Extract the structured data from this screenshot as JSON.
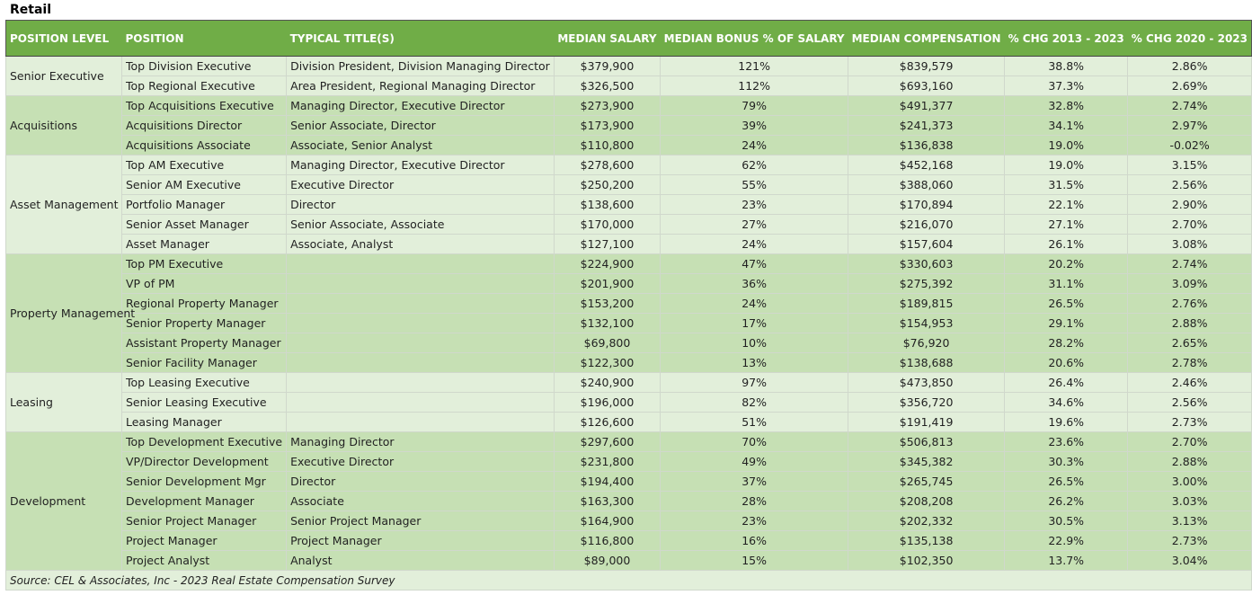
{
  "title": "Retail",
  "headers": [
    "POSITION LEVEL",
    "POSITION",
    "TYPICAL TITLE(S)",
    "MEDIAN SALARY",
    "MEDIAN BONUS % OF SALARY",
    "MEDIAN COMPENSATION",
    "% CHG 2013 - 2023",
    "% CHG 2020 - 2023"
  ],
  "groups": [
    {
      "level": "Senior Executive",
      "rows": [
        [
          "Top Division Executive",
          "Division President, Division Managing Director",
          "$379,900",
          "121%",
          "$839,579",
          "38.8%",
          "2.86%"
        ],
        [
          "Top Regional Executive",
          "Area President, Regional Managing Director",
          "$326,500",
          "112%",
          "$693,160",
          "37.3%",
          "2.69%"
        ]
      ]
    },
    {
      "level": "Acquisitions",
      "rows": [
        [
          "Top Acquisitions Executive",
          "Managing Director, Executive Director",
          "$273,900",
          "79%",
          "$491,377",
          "32.8%",
          "2.74%"
        ],
        [
          "Acquisitions Director",
          "Senior Associate, Director",
          "$173,900",
          "39%",
          "$241,373",
          "34.1%",
          "2.97%"
        ],
        [
          "Acquisitions Associate",
          "Associate, Senior Analyst",
          "$110,800",
          "24%",
          "$136,838",
          "19.0%",
          "-0.02%"
        ]
      ]
    },
    {
      "level": "Asset Management",
      "rows": [
        [
          "Top AM Executive",
          "Managing Director, Executive Director",
          "$278,600",
          "62%",
          "$452,168",
          "19.0%",
          "3.15%"
        ],
        [
          "Senior AM Executive",
          "Executive Director",
          "$250,200",
          "55%",
          "$388,060",
          "31.5%",
          "2.56%"
        ],
        [
          "Portfolio Manager",
          "Director",
          "$138,600",
          "23%",
          "$170,894",
          "22.1%",
          "2.90%"
        ],
        [
          "Senior Asset Manager",
          "Senior Associate, Associate",
          "$170,000",
          "27%",
          "$216,070",
          "27.1%",
          "2.70%"
        ],
        [
          "Asset Manager",
          "Associate, Analyst",
          "$127,100",
          "24%",
          "$157,604",
          "26.1%",
          "3.08%"
        ]
      ]
    },
    {
      "level": "Property Management",
      "rows": [
        [
          "Top PM Executive",
          "",
          "$224,900",
          "47%",
          "$330,603",
          "20.2%",
          "2.74%"
        ],
        [
          "VP of PM",
          "",
          "$201,900",
          "36%",
          "$275,392",
          "31.1%",
          "3.09%"
        ],
        [
          "Regional Property Manager",
          "",
          "$153,200",
          "24%",
          "$189,815",
          "26.5%",
          "2.76%"
        ],
        [
          "Senior Property Manager",
          "",
          "$132,100",
          "17%",
          "$154,953",
          "29.1%",
          "2.88%"
        ],
        [
          "Assistant Property Manager",
          "",
          "$69,800",
          "10%",
          "$76,920",
          "28.2%",
          "2.65%"
        ],
        [
          "Senior Facility Manager",
          "",
          "$122,300",
          "13%",
          "$138,688",
          "20.6%",
          "2.78%"
        ]
      ]
    },
    {
      "level": "Leasing",
      "rows": [
        [
          "Top Leasing Executive",
          "",
          "$240,900",
          "97%",
          "$473,850",
          "26.4%",
          "2.46%"
        ],
        [
          "Senior Leasing Executive",
          "",
          "$196,000",
          "82%",
          "$356,720",
          "34.6%",
          "2.56%"
        ],
        [
          "Leasing Manager",
          "",
          "$126,600",
          "51%",
          "$191,419",
          "19.6%",
          "2.73%"
        ]
      ]
    },
    {
      "level": "Development",
      "rows": [
        [
          "Top Development Executive",
          "Managing Director",
          "$297,600",
          "70%",
          "$506,813",
          "23.6%",
          "2.70%"
        ],
        [
          "VP/Director Development",
          "Executive Director",
          "$231,800",
          "49%",
          "$345,382",
          "30.3%",
          "2.88%"
        ],
        [
          "Senior Development Mgr",
          "Director",
          "$194,400",
          "37%",
          "$265,745",
          "26.5%",
          "3.00%"
        ],
        [
          "Development Manager",
          "Associate",
          "$163,300",
          "28%",
          "$208,208",
          "26.2%",
          "3.03%"
        ],
        [
          "Senior Project Manager",
          "Senior Project Manager",
          "$164,900",
          "23%",
          "$202,332",
          "30.5%",
          "3.13%"
        ],
        [
          "Project Manager",
          "Project Manager",
          "$116,800",
          "16%",
          "$135,138",
          "22.9%",
          "2.73%"
        ],
        [
          "Project Analyst",
          "Analyst",
          "$89,000",
          "15%",
          "$102,350",
          "13.7%",
          "3.04%"
        ]
      ]
    }
  ],
  "source": "Source: CEL & Associates, Inc - 2023 Real Estate Compensation Survey",
  "colors": {
    "header": "#70ad47",
    "band_light": "#e2efda",
    "band_dark": "#c6e0b4"
  }
}
